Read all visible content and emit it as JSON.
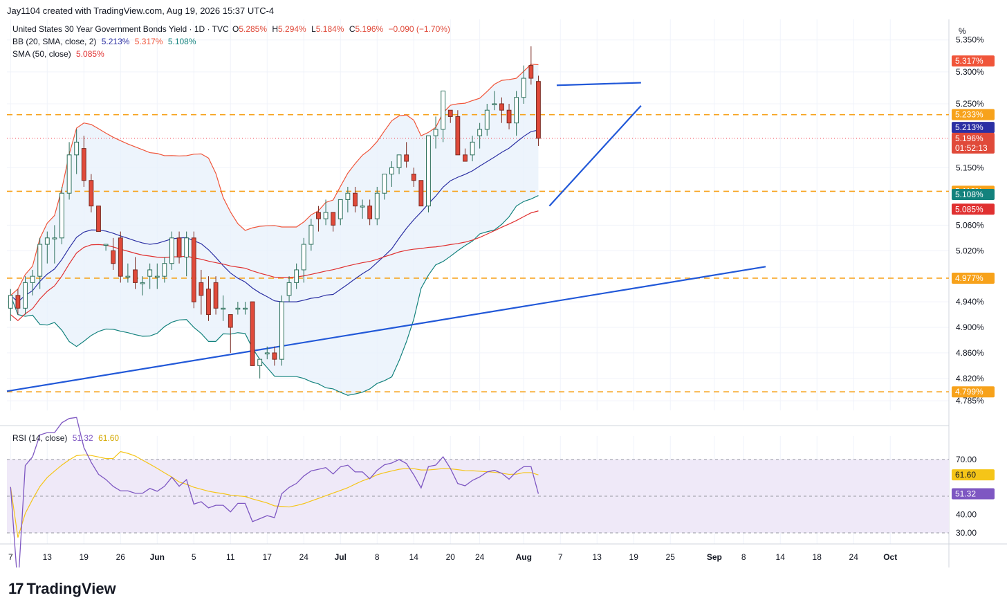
{
  "header": {
    "text": "Jay1104 created with TradingView.com, Aug 19, 2026 15:37 UTC-4"
  },
  "legend": {
    "symbol": "United States 30 Year Government Bonds Yield · 1D · TVC",
    "o_label": "O",
    "o_val": "5.285%",
    "h_label": "H",
    "h_val": "5.294%",
    "l_label": "L",
    "l_val": "5.184%",
    "c_label": "C",
    "c_val": "5.196%",
    "chg": "−0.090 (−1.70%)",
    "bb_label": "BB (20, SMA, close, 2)",
    "bb_basis": "5.213%",
    "bb_upper": "5.317%",
    "bb_lower": "5.108%",
    "sma_label": "SMA (50, close)",
    "sma_val": "5.085%",
    "rsi_label": "RSI (14, close)",
    "rsi_val": "51.32",
    "rsi_ma": "61.60"
  },
  "axis": {
    "unit": "%"
  },
  "colors": {
    "up": "#089981",
    "down": "#f23645",
    "candle_down_fill": "#e04a3a",
    "bb_basis": "#2b2fa3",
    "bb_upper": "#f0553a",
    "bb_lower": "#13827d",
    "sma": "#e03030",
    "level": "#f7a21b",
    "trend": "#2158d8",
    "rsi": "#7e57c2",
    "rsi_ma": "#f5c518",
    "bb_fill": "#e8f1fb",
    "rsi_fill": "#efe9f8"
  },
  "footer": {
    "brand": "TradingView",
    "mark": "17"
  },
  "chart_data": {
    "type": "candlestick",
    "title": "United States 30 Year Government Bonds Yield · 1D · TVC",
    "y_ticks": [
      "5.350%",
      "5.300%",
      "5.250%",
      "5.150%",
      "5.060%",
      "5.020%",
      "4.940%",
      "4.900%",
      "4.860%",
      "4.820%",
      "4.785%"
    ],
    "y_tick_values": [
      5.35,
      5.3,
      5.25,
      5.15,
      5.06,
      5.02,
      4.94,
      4.9,
      4.86,
      4.82,
      4.785
    ],
    "ylim": [
      4.77,
      5.38
    ],
    "x_ticks": [
      "7",
      "13",
      "19",
      "26",
      "Jun",
      "5",
      "11",
      "17",
      "24",
      "Jul",
      "8",
      "14",
      "20",
      "24",
      "Aug",
      "7",
      "13",
      "19",
      "25",
      "Sep",
      "8",
      "14",
      "18",
      "24",
      "Oct"
    ],
    "x_tick_index": [
      0,
      5,
      10,
      15,
      20,
      25,
      30,
      35,
      40,
      45,
      50,
      55,
      60,
      64,
      70,
      75,
      80,
      85,
      90,
      96,
      100,
      105,
      110,
      115,
      120
    ],
    "xlim": [
      -0.5,
      128
    ],
    "price_labels": [
      {
        "value": 5.317,
        "text": "5.317%",
        "color": "#f0553a"
      },
      {
        "value": 5.233,
        "text": "5.233%",
        "color": "#f7a21b"
      },
      {
        "value": 5.213,
        "text": "5.213%",
        "color": "#2b2fa3"
      },
      {
        "value": 5.196,
        "text": "5.196%",
        "color": "#e04a3a",
        "extra": "01:52:13"
      },
      {
        "value": 5.113,
        "text": "5.113%",
        "color": "#f7a21b"
      },
      {
        "value": 5.108,
        "text": "5.108%",
        "color": "#13827d"
      },
      {
        "value": 5.085,
        "text": "5.085%",
        "color": "#e03030"
      },
      {
        "value": 4.977,
        "text": "4.977%",
        "color": "#f7a21b"
      },
      {
        "value": 4.799,
        "text": "4.799%",
        "color": "#f7a21b"
      }
    ],
    "levels": [
      5.233,
      5.113,
      4.977,
      4.799
    ],
    "candles": [
      {
        "o": 4.93,
        "h": 4.96,
        "l": 4.91,
        "c": 4.95
      },
      {
        "o": 4.95,
        "h": 4.96,
        "l": 4.92,
        "c": 4.93
      },
      {
        "o": 4.93,
        "h": 4.98,
        "l": 4.92,
        "c": 4.97
      },
      {
        "o": 4.97,
        "h": 4.99,
        "l": 4.95,
        "c": 4.98
      },
      {
        "o": 4.98,
        "h": 5.04,
        "l": 4.96,
        "c": 5.03
      },
      {
        "o": 5.03,
        "h": 5.05,
        "l": 5.0,
        "c": 5.04
      },
      {
        "o": 5.04,
        "h": 5.06,
        "l": 5.0,
        "c": 5.04
      },
      {
        "o": 5.04,
        "h": 5.12,
        "l": 5.03,
        "c": 5.11
      },
      {
        "o": 5.11,
        "h": 5.19,
        "l": 5.1,
        "c": 5.17
      },
      {
        "o": 5.17,
        "h": 5.21,
        "l": 5.14,
        "c": 5.19
      },
      {
        "o": 5.18,
        "h": 5.2,
        "l": 5.12,
        "c": 5.13
      },
      {
        "o": 5.13,
        "h": 5.14,
        "l": 5.08,
        "c": 5.09
      },
      {
        "o": 5.09,
        "h": 5.09,
        "l": 5.05,
        "c": 5.05
      },
      {
        "o": 5.03,
        "h": 5.03,
        "l": 5.02,
        "c": 5.03
      },
      {
        "o": 5.02,
        "h": 5.04,
        "l": 4.99,
        "c": 5.0
      },
      {
        "o": 5.04,
        "h": 5.05,
        "l": 4.97,
        "c": 4.98
      },
      {
        "o": 4.98,
        "h": 5.0,
        "l": 4.97,
        "c": 4.98
      },
      {
        "o": 4.99,
        "h": 5.01,
        "l": 4.96,
        "c": 4.97
      },
      {
        "o": 4.97,
        "h": 4.98,
        "l": 4.95,
        "c": 4.97
      },
      {
        "o": 4.98,
        "h": 5.0,
        "l": 4.96,
        "c": 4.99
      },
      {
        "o": 4.98,
        "h": 5.0,
        "l": 4.96,
        "c": 4.98
      },
      {
        "o": 4.98,
        "h": 5.01,
        "l": 4.97,
        "c": 5.0
      },
      {
        "o": 5.0,
        "h": 5.05,
        "l": 4.99,
        "c": 5.04
      },
      {
        "o": 5.04,
        "h": 5.05,
        "l": 5.0,
        "c": 5.01
      },
      {
        "o": 5.01,
        "h": 5.05,
        "l": 4.98,
        "c": 5.04
      },
      {
        "o": 5.04,
        "h": 5.05,
        "l": 4.93,
        "c": 4.94
      },
      {
        "o": 4.97,
        "h": 4.99,
        "l": 4.92,
        "c": 4.95
      },
      {
        "o": 4.96,
        "h": 4.98,
        "l": 4.91,
        "c": 4.92
      },
      {
        "o": 4.97,
        "h": 4.98,
        "l": 4.92,
        "c": 4.93
      },
      {
        "o": 4.93,
        "h": 4.95,
        "l": 4.91,
        "c": 4.93
      },
      {
        "o": 4.92,
        "h": 4.92,
        "l": 4.86,
        "c": 4.9
      },
      {
        "o": 4.93,
        "h": 4.94,
        "l": 4.92,
        "c": 4.93
      },
      {
        "o": 4.93,
        "h": 4.94,
        "l": 4.92,
        "c": 4.93
      },
      {
        "o": 4.94,
        "h": 4.94,
        "l": 4.84,
        "c": 4.84
      },
      {
        "o": 4.84,
        "h": 4.85,
        "l": 4.82,
        "c": 4.85
      },
      {
        "o": 4.86,
        "h": 4.87,
        "l": 4.85,
        "c": 4.86
      },
      {
        "o": 4.86,
        "h": 4.87,
        "l": 4.84,
        "c": 4.85
      },
      {
        "o": 4.85,
        "h": 4.95,
        "l": 4.84,
        "c": 4.94
      },
      {
        "o": 4.95,
        "h": 4.98,
        "l": 4.94,
        "c": 4.97
      },
      {
        "o": 4.97,
        "h": 5.0,
        "l": 4.96,
        "c": 4.99
      },
      {
        "o": 4.99,
        "h": 5.04,
        "l": 4.97,
        "c": 5.03
      },
      {
        "o": 5.03,
        "h": 5.07,
        "l": 5.02,
        "c": 5.06
      },
      {
        "o": 5.08,
        "h": 5.09,
        "l": 5.05,
        "c": 5.07
      },
      {
        "o": 5.07,
        "h": 5.1,
        "l": 5.06,
        "c": 5.08
      },
      {
        "o": 5.08,
        "h": 5.08,
        "l": 5.05,
        "c": 5.06
      },
      {
        "o": 5.07,
        "h": 5.1,
        "l": 5.06,
        "c": 5.1
      },
      {
        "o": 5.1,
        "h": 5.12,
        "l": 5.08,
        "c": 5.11
      },
      {
        "o": 5.11,
        "h": 5.12,
        "l": 5.08,
        "c": 5.09
      },
      {
        "o": 5.09,
        "h": 5.1,
        "l": 5.07,
        "c": 5.09
      },
      {
        "o": 5.09,
        "h": 5.1,
        "l": 5.06,
        "c": 5.07
      },
      {
        "o": 5.07,
        "h": 5.12,
        "l": 5.06,
        "c": 5.11
      },
      {
        "o": 5.11,
        "h": 5.14,
        "l": 5.1,
        "c": 5.14
      },
      {
        "o": 5.14,
        "h": 5.16,
        "l": 5.12,
        "c": 5.15
      },
      {
        "o": 5.15,
        "h": 5.17,
        "l": 5.14,
        "c": 5.17
      },
      {
        "o": 5.17,
        "h": 5.19,
        "l": 5.15,
        "c": 5.16
      },
      {
        "o": 5.14,
        "h": 5.15,
        "l": 5.12,
        "c": 5.13
      },
      {
        "o": 5.13,
        "h": 5.13,
        "l": 5.09,
        "c": 5.09
      },
      {
        "o": 5.09,
        "h": 5.2,
        "l": 5.08,
        "c": 5.2
      },
      {
        "o": 5.2,
        "h": 5.23,
        "l": 5.18,
        "c": 5.21
      },
      {
        "o": 5.21,
        "h": 5.27,
        "l": 5.19,
        "c": 5.27
      },
      {
        "o": 5.24,
        "h": 5.24,
        "l": 5.22,
        "c": 5.23
      },
      {
        "o": 5.23,
        "h": 5.24,
        "l": 5.17,
        "c": 5.17
      },
      {
        "o": 5.17,
        "h": 5.18,
        "l": 5.16,
        "c": 5.16
      },
      {
        "o": 5.17,
        "h": 5.2,
        "l": 5.16,
        "c": 5.19
      },
      {
        "o": 5.2,
        "h": 5.22,
        "l": 5.18,
        "c": 5.21
      },
      {
        "o": 5.21,
        "h": 5.25,
        "l": 5.2,
        "c": 5.24
      },
      {
        "o": 5.25,
        "h": 5.27,
        "l": 5.24,
        "c": 5.25
      },
      {
        "o": 5.25,
        "h": 5.26,
        "l": 5.22,
        "c": 5.24
      },
      {
        "o": 5.24,
        "h": 5.25,
        "l": 5.21,
        "c": 5.22
      },
      {
        "o": 5.22,
        "h": 5.27,
        "l": 5.2,
        "c": 5.26
      },
      {
        "o": 5.26,
        "h": 5.31,
        "l": 5.25,
        "c": 5.29
      },
      {
        "o": 5.31,
        "h": 5.34,
        "l": 5.28,
        "c": 5.29
      },
      {
        "o": 5.285,
        "h": 5.294,
        "l": 5.184,
        "c": 5.196
      }
    ],
    "rsi_ticks": [
      "70.00",
      "40.00",
      "30.00"
    ],
    "rsi_tick_values": [
      70,
      40,
      30
    ],
    "rsi_ylim": [
      27,
      79
    ],
    "rsi_labels": [
      {
        "value": 61.6,
        "text": "61.60",
        "color": "#f5c518"
      },
      {
        "value": 51.32,
        "text": "51.32",
        "color": "#7e57c2"
      }
    ],
    "rsi_band": [
      30,
      70
    ]
  }
}
